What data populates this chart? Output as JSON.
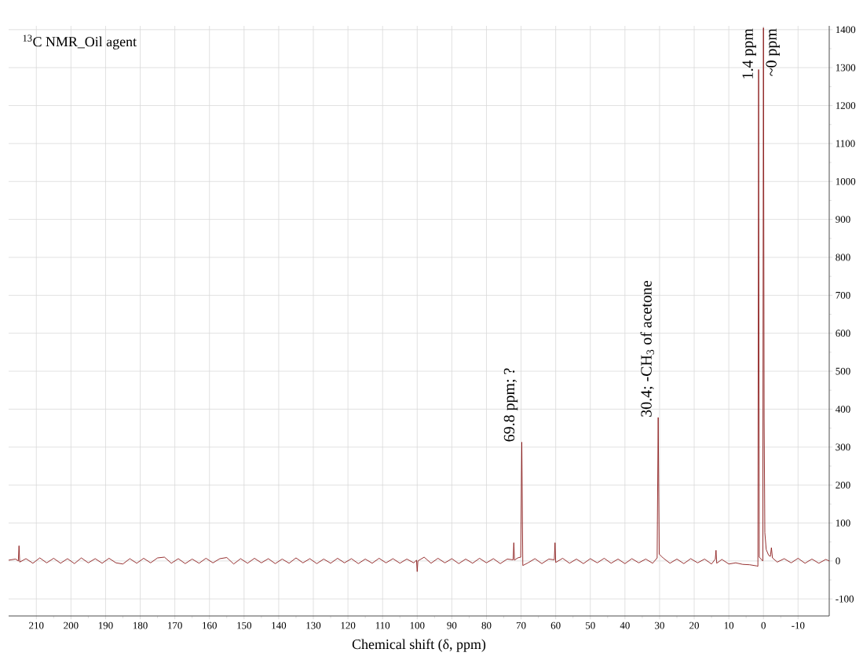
{
  "chart_data": {
    "type": "line",
    "title": "$^{13}$C NMR_Oil agent",
    "xlabel": "Chemical shift (δ, ppm)",
    "x": [
      218,
      216,
      215.2,
      215,
      214.8,
      213,
      211,
      209,
      207,
      205,
      203,
      201,
      199,
      197,
      195,
      193,
      191,
      189,
      187,
      185,
      183,
      181,
      179,
      177,
      175,
      173,
      171,
      169,
      167,
      165,
      163,
      161,
      159,
      157,
      155,
      153,
      151,
      149,
      147,
      145,
      143,
      141,
      139,
      137,
      135,
      133,
      131,
      129,
      127,
      125,
      123,
      121,
      119,
      117,
      115,
      113,
      111,
      109,
      107,
      105,
      103,
      101,
      100.2,
      100,
      99.8,
      98,
      96,
      94,
      92,
      90,
      88,
      86,
      84,
      82,
      80,
      78,
      76,
      74,
      72.3,
      72.1,
      71.9,
      71,
      70.1,
      69.8,
      69.5,
      68,
      66,
      64,
      62,
      60.4,
      60.2,
      60,
      58,
      56,
      54,
      52,
      50,
      48,
      46,
      44,
      42,
      40,
      38,
      36,
      34,
      32,
      30.7,
      30.4,
      30.1,
      29,
      27,
      25,
      23,
      21,
      19,
      17,
      15,
      13.9,
      13.7,
      13.5,
      12,
      10,
      8,
      6,
      4,
      2,
      1.6,
      1.4,
      1.2,
      0.2,
      0,
      -0.2,
      -0.4,
      -0.8,
      -1.5,
      -2,
      -2.3,
      -2.6,
      -4,
      -6,
      -8,
      -10,
      -12,
      -14,
      -16,
      -18,
      -19
    ],
    "series": [
      {
        "color": "#8b1a1a",
        "values": [
          2,
          5,
          0,
          40,
          -3,
          6,
          -6,
          8,
          -5,
          7,
          -6,
          6,
          -7,
          8,
          -5,
          6,
          -6,
          7,
          -5,
          -8,
          6,
          -6,
          7,
          -5,
          8,
          10,
          -6,
          6,
          -7,
          5,
          -6,
          7,
          -5,
          6,
          9,
          -8,
          6,
          -6,
          7,
          -5,
          6,
          -7,
          5,
          -6,
          8,
          -5,
          6,
          -7,
          5,
          -6,
          7,
          -5,
          6,
          -7,
          5,
          -6,
          7,
          -5,
          6,
          -6,
          5,
          -5,
          2,
          -28,
          0,
          10,
          -6,
          7,
          -5,
          6,
          -7,
          5,
          -6,
          7,
          -5,
          6,
          -7,
          5,
          3,
          48,
          2,
          8,
          10,
          313,
          -12,
          -5,
          6,
          -7,
          5,
          3,
          48,
          -4,
          7,
          -6,
          5,
          -7,
          6,
          -5,
          7,
          -6,
          5,
          -7,
          6,
          -5,
          5,
          -6,
          8,
          378,
          18,
          8,
          -6,
          5,
          -7,
          6,
          -5,
          5,
          -8,
          5,
          28,
          -6,
          4,
          -8,
          -5,
          -9,
          -10,
          -13,
          -14,
          1295,
          10,
          0,
          1405,
          378,
          75,
          30,
          15,
          12,
          35,
          8,
          -3,
          6,
          -5,
          7,
          -6,
          5,
          -6,
          4,
          0
        ]
      }
    ],
    "xlim": [
      218,
      -19
    ],
    "ylim": [
      -145,
      1410
    ],
    "xticks": [
      210,
      200,
      190,
      180,
      170,
      160,
      150,
      140,
      130,
      120,
      110,
      100,
      90,
      80,
      70,
      60,
      50,
      40,
      30,
      20,
      10,
      0,
      -10
    ],
    "yticks": [
      -100,
      0,
      100,
      200,
      300,
      400,
      500,
      600,
      700,
      800,
      900,
      1000,
      1100,
      1200,
      1300,
      1400
    ],
    "grid": true,
    "annotations": [
      {
        "text": "69.8 ppm; ?",
        "x": 69.8,
        "y": 313
      },
      {
        "text": "30.4; -CH$_{3}$ of acetone",
        "x": 30.4,
        "y": 378
      },
      {
        "text": "1.4 ppm",
        "x": 1.4,
        "y": 1295
      },
      {
        "text": "~0 ppm",
        "x": 0,
        "y": 1405
      }
    ]
  }
}
